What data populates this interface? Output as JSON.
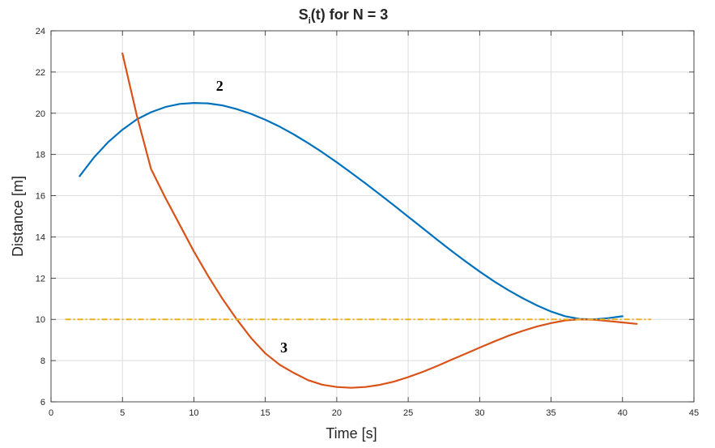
{
  "chart_data": {
    "type": "line",
    "title": {
      "main": "S",
      "sub": "i",
      "rest": "(t) for N = 3"
    },
    "xlabel": "Time [s]",
    "ylabel": "Distance [m]",
    "xlim": [
      0,
      45
    ],
    "ylim": [
      6,
      24
    ],
    "xticks": [
      0,
      5,
      10,
      15,
      20,
      25,
      30,
      35,
      40,
      45
    ],
    "yticks": [
      6,
      8,
      10,
      12,
      14,
      16,
      18,
      20,
      22,
      24
    ],
    "grid": true,
    "legend": "none",
    "series": [
      {
        "color": "#0072BD",
        "x": [
          2,
          3,
          4,
          5,
          6,
          7,
          8,
          9,
          10,
          11,
          12,
          13,
          14,
          15,
          16,
          17,
          18,
          19,
          20,
          21,
          22,
          23,
          24,
          25,
          26,
          27,
          28,
          29,
          30,
          31,
          32,
          33,
          34,
          35,
          36,
          37,
          38,
          39,
          40
        ],
        "y": [
          16.95,
          17.85,
          18.6,
          19.2,
          19.7,
          20.05,
          20.3,
          20.45,
          20.5,
          20.48,
          20.38,
          20.2,
          19.97,
          19.68,
          19.35,
          18.97,
          18.55,
          18.1,
          17.62,
          17.12,
          16.6,
          16.07,
          15.53,
          14.98,
          14.43,
          13.88,
          13.34,
          12.82,
          12.32,
          11.85,
          11.42,
          11.03,
          10.68,
          10.38,
          10.15,
          10.02,
          10.0,
          10.06,
          10.15
        ]
      },
      {
        "color": "#D95319",
        "x": [
          5,
          6,
          7,
          8,
          9,
          10,
          11,
          12,
          13,
          14,
          15,
          16,
          17,
          18,
          19,
          20,
          21,
          22,
          23,
          24,
          25,
          26,
          27,
          28,
          29,
          30,
          31,
          32,
          33,
          34,
          35,
          36,
          37,
          38,
          39,
          40,
          41
        ],
        "y": [
          22.9,
          19.9,
          17.3,
          15.9,
          14.6,
          13.3,
          12.1,
          11.0,
          10.0,
          9.1,
          8.35,
          7.8,
          7.4,
          7.05,
          6.83,
          6.72,
          6.68,
          6.72,
          6.82,
          6.98,
          7.2,
          7.45,
          7.73,
          8.03,
          8.33,
          8.63,
          8.92,
          9.2,
          9.44,
          9.65,
          9.82,
          9.95,
          10.0,
          9.98,
          9.92,
          9.85,
          9.78
        ]
      },
      {
        "color": "#EDB120",
        "dashed": true,
        "x": [
          1,
          42
        ],
        "y": [
          10,
          10
        ]
      }
    ],
    "annotations": [
      {
        "text": "2",
        "x": 11.8,
        "y": 21.1
      },
      {
        "text": "3",
        "x": 16.3,
        "y": 8.4
      }
    ]
  }
}
